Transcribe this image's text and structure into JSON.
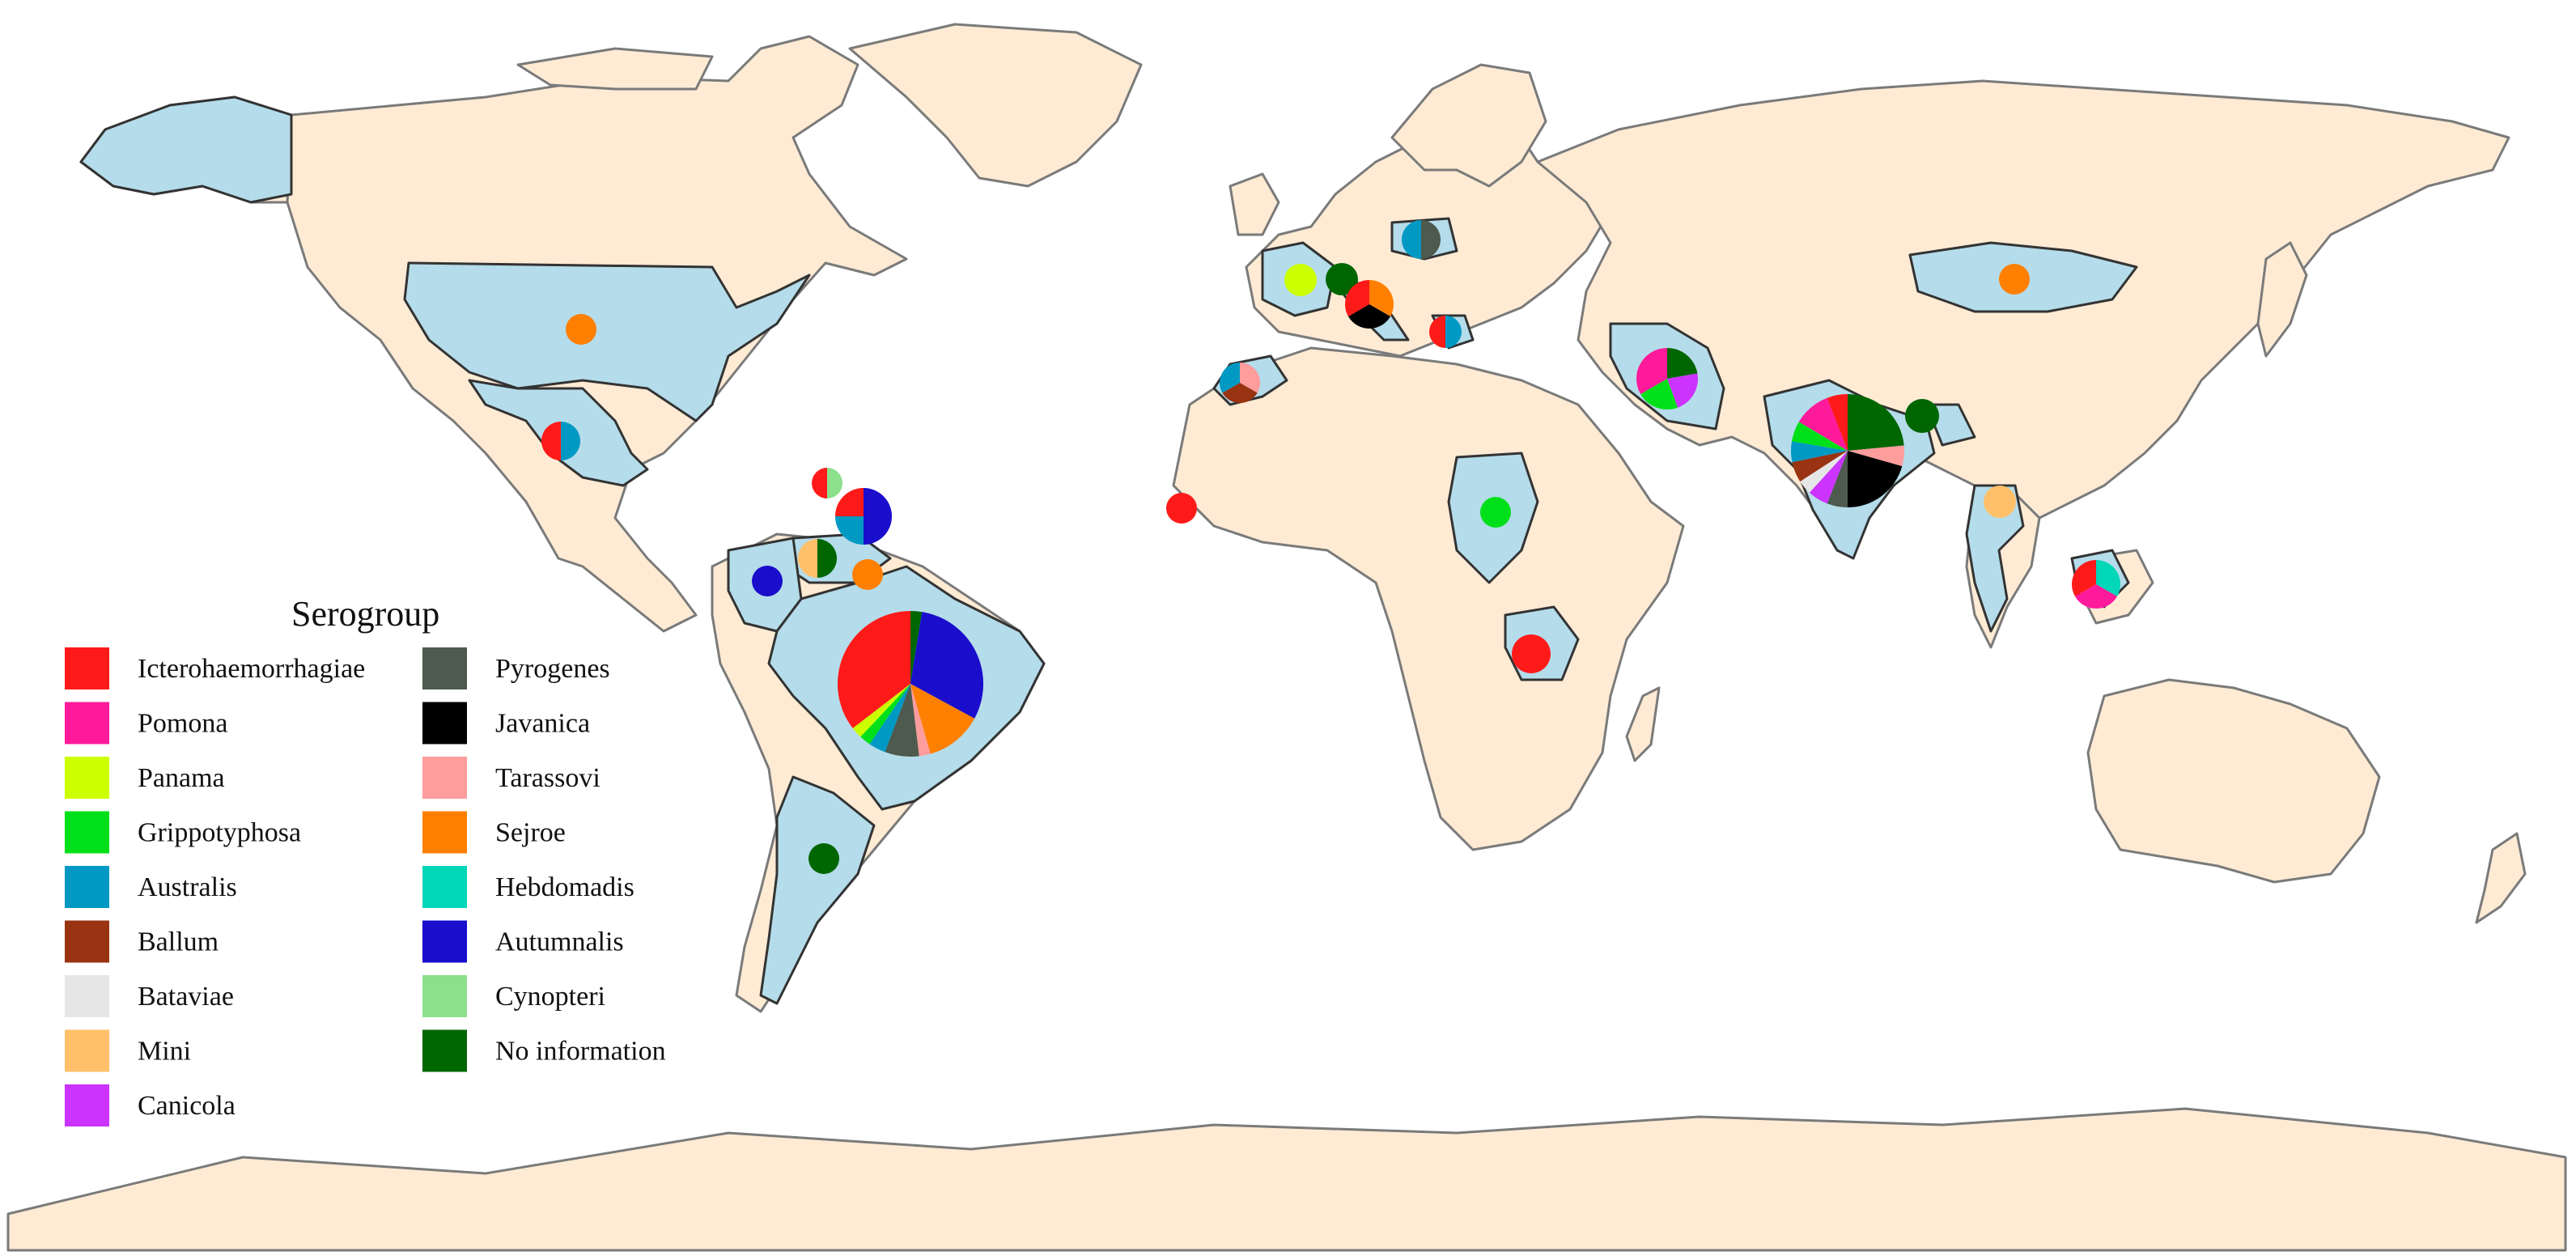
{
  "legend": {
    "title": "Serogroup",
    "items": [
      {
        "key": "icterohaemorrhagiae",
        "label": "Icterohaemorrhagiae",
        "color": "#ff1a1a"
      },
      {
        "key": "pomona",
        "label": "Pomona",
        "color": "#ff1a9c"
      },
      {
        "key": "panama",
        "label": "Panama",
        "color": "#ccff00"
      },
      {
        "key": "grippotyphosa",
        "label": "Grippotyphosa",
        "color": "#00e01a"
      },
      {
        "key": "australis",
        "label": "Australis",
        "color": "#0099c4"
      },
      {
        "key": "ballum",
        "label": "Ballum",
        "color": "#993311"
      },
      {
        "key": "bataviae",
        "label": "Bataviae",
        "color": "#e6e6e6"
      },
      {
        "key": "mini",
        "label": "Mini",
        "color": "#ffc069"
      },
      {
        "key": "canicola",
        "label": "Canicola",
        "color": "#cc33ff"
      },
      {
        "key": "pyrogenes",
        "label": "Pyrogenes",
        "color": "#4d5a4d"
      },
      {
        "key": "javanica",
        "label": "Javanica",
        "color": "#000000"
      },
      {
        "key": "tarassovi",
        "label": "Tarassovi",
        "color": "#ff9c9c"
      },
      {
        "key": "sejroe",
        "label": "Sejroe",
        "color": "#ff7f00"
      },
      {
        "key": "hebdomadis",
        "label": "Hebdomadis",
        "color": "#00d6b8"
      },
      {
        "key": "autumnalis",
        "label": "Autumnalis",
        "color": "#1a0dcc"
      },
      {
        "key": "cynopteri",
        "label": "Cynopteri",
        "color": "#8ce08c"
      },
      {
        "key": "no_information",
        "label": "No information",
        "color": "#006600"
      }
    ]
  },
  "map_colors": {
    "ocean": "#ffffff",
    "land": "#ffebd4",
    "highlighted_country": "#b5dcea",
    "border": "#7a7a7a"
  },
  "pies": [
    {
      "name": "usa",
      "slices": [
        {
          "key": "sejroe",
          "value": 1
        }
      ]
    },
    {
      "name": "mexico",
      "slices": [
        {
          "key": "australis",
          "value": 1
        },
        {
          "key": "icterohaemorrhagiae",
          "value": 1
        }
      ]
    },
    {
      "name": "caribbean-north",
      "slices": [
        {
          "key": "cynopteri",
          "value": 1
        },
        {
          "key": "icterohaemorrhagiae",
          "value": 1
        }
      ]
    },
    {
      "name": "caribbean-lesser-antilles",
      "slices": [
        {
          "key": "autumnalis",
          "value": 2
        },
        {
          "key": "australis",
          "value": 1
        },
        {
          "key": "icterohaemorrhagiae",
          "value": 1
        }
      ]
    },
    {
      "name": "colombia",
      "slices": [
        {
          "key": "autumnalis",
          "value": 1
        }
      ]
    },
    {
      "name": "venezuela",
      "slices": [
        {
          "key": "no_information",
          "value": 1
        },
        {
          "key": "mini",
          "value": 1
        }
      ]
    },
    {
      "name": "guiana",
      "slices": [
        {
          "key": "sejroe",
          "value": 1
        }
      ]
    },
    {
      "name": "brazil",
      "slices": [
        {
          "key": "no_information",
          "value": 1
        },
        {
          "key": "autumnalis",
          "value": 12
        },
        {
          "key": "sejroe",
          "value": 5
        },
        {
          "key": "tarassovi",
          "value": 1
        },
        {
          "key": "pyrogenes",
          "value": 3
        },
        {
          "key": "australis",
          "value": 1.5
        },
        {
          "key": "grippotyphosa",
          "value": 1
        },
        {
          "key": "panama",
          "value": 1
        },
        {
          "key": "icterohaemorrhagiae",
          "value": 14
        }
      ]
    },
    {
      "name": "argentina",
      "slices": [
        {
          "key": "no_information",
          "value": 1
        }
      ]
    },
    {
      "name": "france",
      "slices": [
        {
          "key": "panama",
          "value": 1
        }
      ]
    },
    {
      "name": "germany",
      "slices": [
        {
          "key": "no_information",
          "value": 1
        }
      ]
    },
    {
      "name": "poland",
      "slices": [
        {
          "key": "pyrogenes",
          "value": 1
        },
        {
          "key": "australis",
          "value": 1
        }
      ]
    },
    {
      "name": "italy",
      "slices": [
        {
          "key": "sejroe",
          "value": 1
        },
        {
          "key": "javanica",
          "value": 1
        },
        {
          "key": "icterohaemorrhagiae",
          "value": 1
        }
      ]
    },
    {
      "name": "greece",
      "slices": [
        {
          "key": "australis",
          "value": 1
        },
        {
          "key": "icterohaemorrhagiae",
          "value": 1
        }
      ]
    },
    {
      "name": "morocco",
      "slices": [
        {
          "key": "tarassovi",
          "value": 1
        },
        {
          "key": "ballum",
          "value": 1
        },
        {
          "key": "australis",
          "value": 1
        }
      ]
    },
    {
      "name": "senegal",
      "slices": [
        {
          "key": "icterohaemorrhagiae",
          "value": 1
        }
      ]
    },
    {
      "name": "sudan",
      "slices": [
        {
          "key": "grippotyphosa",
          "value": 1
        }
      ]
    },
    {
      "name": "tanzania",
      "slices": [
        {
          "key": "icterohaemorrhagiae",
          "value": 1
        }
      ]
    },
    {
      "name": "iran",
      "slices": [
        {
          "key": "no_information",
          "value": 1
        },
        {
          "key": "canicola",
          "value": 1
        },
        {
          "key": "grippotyphosa",
          "value": 1
        },
        {
          "key": "pomona",
          "value": 1.5
        }
      ]
    },
    {
      "name": "india",
      "slices": [
        {
          "key": "no_information",
          "value": 4
        },
        {
          "key": "tarassovi",
          "value": 1
        },
        {
          "key": "javanica",
          "value": 3.5
        },
        {
          "key": "pyrogenes",
          "value": 1
        },
        {
          "key": "canicola",
          "value": 1
        },
        {
          "key": "bataviae",
          "value": 0.7
        },
        {
          "key": "ballum",
          "value": 1
        },
        {
          "key": "australis",
          "value": 1
        },
        {
          "key": "grippotyphosa",
          "value": 1
        },
        {
          "key": "pomona",
          "value": 1.8
        },
        {
          "key": "icterohaemorrhagiae",
          "value": 1
        }
      ]
    },
    {
      "name": "bangladesh",
      "slices": [
        {
          "key": "no_information",
          "value": 1
        }
      ]
    },
    {
      "name": "mongolia",
      "slices": [
        {
          "key": "sejroe",
          "value": 1
        }
      ]
    },
    {
      "name": "thailand",
      "slices": [
        {
          "key": "mini",
          "value": 1
        }
      ]
    },
    {
      "name": "malaysia",
      "slices": [
        {
          "key": "hebdomadis",
          "value": 1
        },
        {
          "key": "pomona",
          "value": 1
        },
        {
          "key": "icterohaemorrhagiae",
          "value": 1
        }
      ]
    }
  ]
}
